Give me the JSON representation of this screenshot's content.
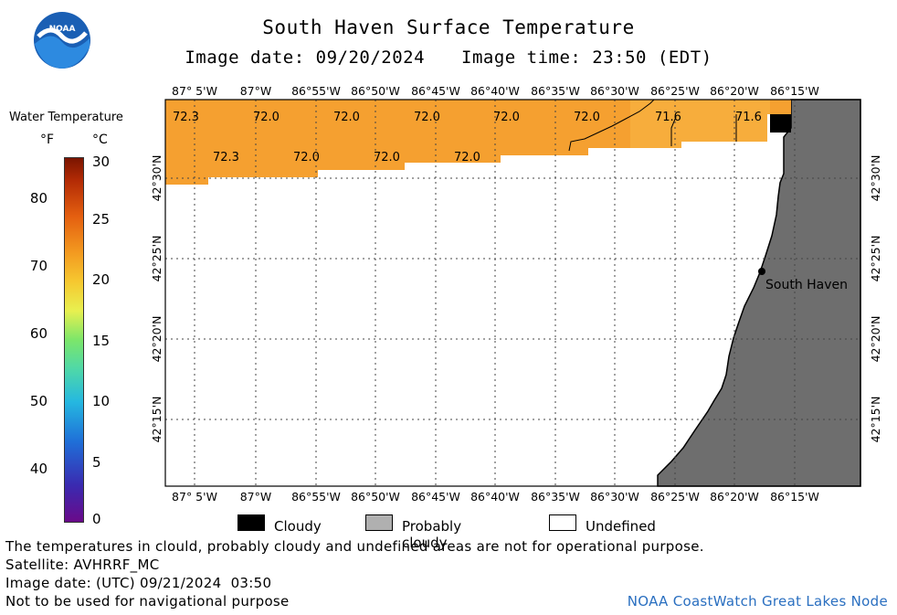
{
  "header": {
    "title": "South Haven Surface Temperature",
    "image_date": "Image date: 09/20/2024",
    "image_time": "Image time: 23:50 (EDT)"
  },
  "logo": {
    "text": "NOAA"
  },
  "color_scale": {
    "title": "Water Temperature",
    "unit_f": "°F",
    "unit_c": "°C",
    "f_ticks": [
      "80",
      "70",
      "60",
      "50",
      "40"
    ],
    "c_ticks": [
      "30",
      "25",
      "20",
      "15",
      "10",
      "5",
      "0"
    ]
  },
  "map": {
    "lon_labels": [
      "87° 5'W",
      "87°W",
      "86°55'W",
      "86°50'W",
      "86°45'W",
      "86°40'W",
      "86°35'W",
      "86°30'W",
      "86°25'W",
      "86°20'W",
      "86°15'W"
    ],
    "lat_labels": [
      "42°30'N",
      "42°25'N",
      "42°20'N",
      "42°15'N"
    ],
    "temp_labels_row1": [
      "72.3",
      "72.0",
      "72.0",
      "72.0",
      "72.0",
      "72.0",
      "71.6",
      "71.6"
    ],
    "temp_labels_row2": [
      "72.3",
      "72.0",
      "72.0",
      "72.0"
    ],
    "city_label": "South Haven",
    "colors": {
      "water": "#f5a030",
      "land": "#6e6e6e",
      "cloud": "#000000",
      "undefined": "#ffffff"
    }
  },
  "legend": {
    "cloudy": "Cloudy",
    "probably_cloudy": "Probably cloudy",
    "undefined": "Undefined"
  },
  "footer": {
    "disclaimer": "The temperatures in clould, probably cloudy and undefined areas are not for operational purpose.",
    "satellite": "Satellite: AVHRRF_MC",
    "image_date_utc": "Image date: (UTC) 09/21/2024  03:50",
    "nav_warning": "Not to be used for navigational purpose",
    "credit": "NOAA CoastWatch Great Lakes Node"
  }
}
